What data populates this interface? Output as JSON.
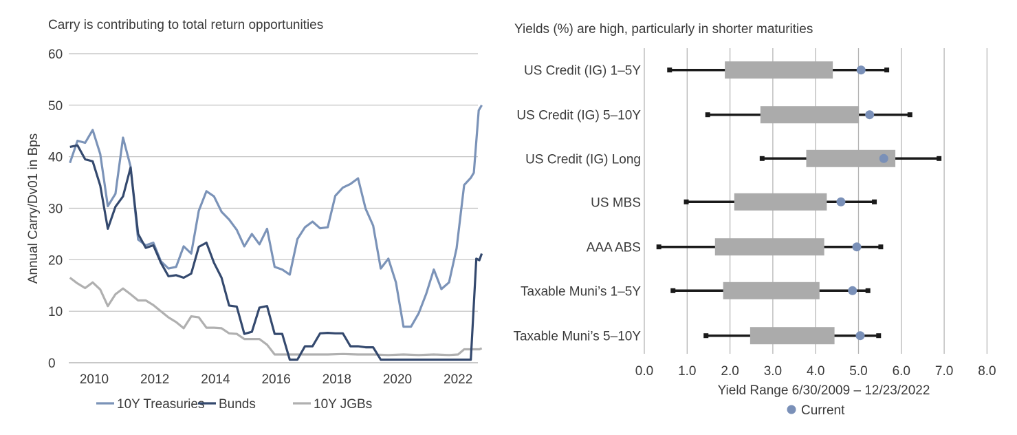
{
  "chart_data": [
    {
      "type": "line",
      "title": "Carry is contributing to total return opportunities",
      "ylabel": "Annual Carry/Dv01 in Bps",
      "xlabel": "",
      "ylim": [
        0,
        60
      ],
      "yticks": [
        0,
        10,
        20,
        30,
        40,
        50,
        60
      ],
      "xticks": [
        2010,
        2012,
        2014,
        2016,
        2018,
        2020,
        2022
      ],
      "xlim": [
        2009.2,
        2022.8
      ],
      "grid": "horizontal",
      "legend": "bottom",
      "series": [
        {
          "name": "10Y Treasuries",
          "color": "#7b93b8",
          "x": [
            2009.2,
            2009.45,
            2009.7,
            2009.95,
            2010.2,
            2010.45,
            2010.7,
            2010.95,
            2011.2,
            2011.45,
            2011.7,
            2011.95,
            2012.2,
            2012.45,
            2012.7,
            2012.95,
            2013.2,
            2013.45,
            2013.7,
            2013.95,
            2014.2,
            2014.45,
            2014.7,
            2014.95,
            2015.2,
            2015.45,
            2015.7,
            2015.95,
            2016.2,
            2016.45,
            2016.7,
            2016.95,
            2017.2,
            2017.45,
            2017.7,
            2017.95,
            2018.2,
            2018.45,
            2018.7,
            2018.95,
            2019.2,
            2019.45,
            2019.7,
            2019.95,
            2020.2,
            2020.45,
            2020.7,
            2020.95,
            2021.2,
            2021.45,
            2021.7,
            2021.95,
            2022.2,
            2022.42,
            2022.52,
            2022.68,
            2022.78
          ],
          "y": [
            38.8,
            43.1,
            42.7,
            45.2,
            40.5,
            30.4,
            32.8,
            43.7,
            38.1,
            23.9,
            22.8,
            23.3,
            19.7,
            18.3,
            18.6,
            22.6,
            21.2,
            29.5,
            33.3,
            32.3,
            29.3,
            27.8,
            25.8,
            22.6,
            25.0,
            23.0,
            26.0,
            18.6,
            18.1,
            17.1,
            24.0,
            26.3,
            27.4,
            26.1,
            26.3,
            32.4,
            34.0,
            34.7,
            35.8,
            29.9,
            26.6,
            18.3,
            20.2,
            15.6,
            7.0,
            7.0,
            9.6,
            13.4,
            18.1,
            14.3,
            15.6,
            22.2,
            34.5,
            35.9,
            36.9,
            49.0,
            50.0
          ]
        },
        {
          "name": "Bunds",
          "color": "#34496e",
          "x": [
            2009.2,
            2009.45,
            2009.7,
            2009.95,
            2010.2,
            2010.45,
            2010.7,
            2010.95,
            2011.2,
            2011.45,
            2011.7,
            2011.95,
            2012.2,
            2012.45,
            2012.7,
            2012.95,
            2013.2,
            2013.45,
            2013.7,
            2013.95,
            2014.2,
            2014.45,
            2014.7,
            2014.95,
            2015.2,
            2015.45,
            2015.7,
            2015.95,
            2016.2,
            2016.45,
            2016.7,
            2016.95,
            2017.2,
            2017.45,
            2017.7,
            2017.95,
            2018.2,
            2018.45,
            2018.7,
            2018.95,
            2019.2,
            2019.45,
            2019.7,
            2019.95,
            2020.2,
            2020.45,
            2020.7,
            2020.95,
            2021.2,
            2021.45,
            2021.7,
            2021.95,
            2022.2,
            2022.42,
            2022.6,
            2022.7,
            2022.78
          ],
          "y": [
            41.9,
            42.2,
            39.5,
            39.1,
            34.4,
            26.0,
            30.3,
            32.3,
            37.9,
            25.0,
            22.3,
            22.8,
            19.4,
            16.8,
            17.0,
            16.5,
            17.3,
            22.5,
            23.3,
            19.4,
            16.5,
            11.1,
            10.9,
            5.6,
            6.0,
            10.7,
            11.0,
            5.6,
            5.6,
            0.6,
            0.6,
            3.2,
            3.2,
            5.7,
            5.8,
            5.7,
            5.7,
            3.2,
            3.2,
            3.0,
            3.0,
            0.6,
            0.6,
            0.6,
            0.6,
            0.6,
            0.6,
            0.6,
            0.6,
            0.6,
            0.6,
            0.6,
            0.6,
            0.6,
            20.2,
            19.9,
            21.2
          ]
        },
        {
          "name": "10Y JGBs",
          "color": "#b0b0b0",
          "x": [
            2009.2,
            2009.45,
            2009.7,
            2009.95,
            2010.2,
            2010.45,
            2010.7,
            2010.95,
            2011.2,
            2011.45,
            2011.7,
            2011.95,
            2012.2,
            2012.45,
            2012.7,
            2012.95,
            2013.2,
            2013.45,
            2013.7,
            2013.95,
            2014.2,
            2014.45,
            2014.7,
            2014.95,
            2015.2,
            2015.45,
            2015.7,
            2015.95,
            2016.2,
            2016.7,
            2017.2,
            2017.7,
            2018.2,
            2018.7,
            2019.2,
            2019.7,
            2020.2,
            2020.7,
            2021.2,
            2021.7,
            2022.0,
            2022.2,
            2022.42,
            2022.6,
            2022.7,
            2022.78
          ],
          "y": [
            16.5,
            15.4,
            14.5,
            15.6,
            14.2,
            11.0,
            13.3,
            14.4,
            13.3,
            12.1,
            12.1,
            11.2,
            10.0,
            8.8,
            7.9,
            6.7,
            9.0,
            8.8,
            6.8,
            6.8,
            6.7,
            5.7,
            5.6,
            4.6,
            4.6,
            4.6,
            3.5,
            1.6,
            1.6,
            1.6,
            1.6,
            1.6,
            1.7,
            1.6,
            1.6,
            1.5,
            1.6,
            1.5,
            1.6,
            1.5,
            1.6,
            2.6,
            2.6,
            2.6,
            2.6,
            2.8
          ]
        }
      ]
    },
    {
      "type": "bar",
      "subtype": "horizontal range (floating bar with whiskers and current marker)",
      "title": "Yields (%) are high, particularly in shorter maturities",
      "xlabel": "Yield Range 6/30/2009 – 12/23/2022",
      "xlim": [
        0,
        8
      ],
      "xticks": [
        "0.0",
        "1.0",
        "2.0",
        "3.0",
        "4.0",
        "5.0",
        "6.0",
        "7.0",
        "8.0"
      ],
      "grid": "vertical",
      "legend": "bottom",
      "legend_label": "Current",
      "box_color": "#ababab",
      "whisker_color": "#1a1a1a",
      "current_color": "#7a90b8",
      "categories": [
        "US Credit (IG) 1–5Y",
        "US Credit (IG) 5–10Y",
        "US Credit (IG) Long",
        "US MBS",
        "AAA ABS",
        "Taxable Muni’s 1–5Y",
        "Taxable Muni’s 5–10Y"
      ],
      "min": [
        0.59,
        1.48,
        2.75,
        0.98,
        0.34,
        0.67,
        1.44
      ],
      "box_low": [
        1.88,
        2.71,
        3.78,
        2.1,
        1.65,
        1.84,
        2.47
      ],
      "box_high": [
        4.4,
        5.01,
        5.86,
        4.26,
        4.2,
        4.09,
        4.44
      ],
      "current": [
        5.06,
        5.26,
        5.59,
        4.59,
        4.96,
        4.86,
        5.04
      ],
      "max": [
        5.66,
        6.2,
        6.88,
        5.37,
        5.52,
        5.22,
        5.47
      ]
    }
  ]
}
